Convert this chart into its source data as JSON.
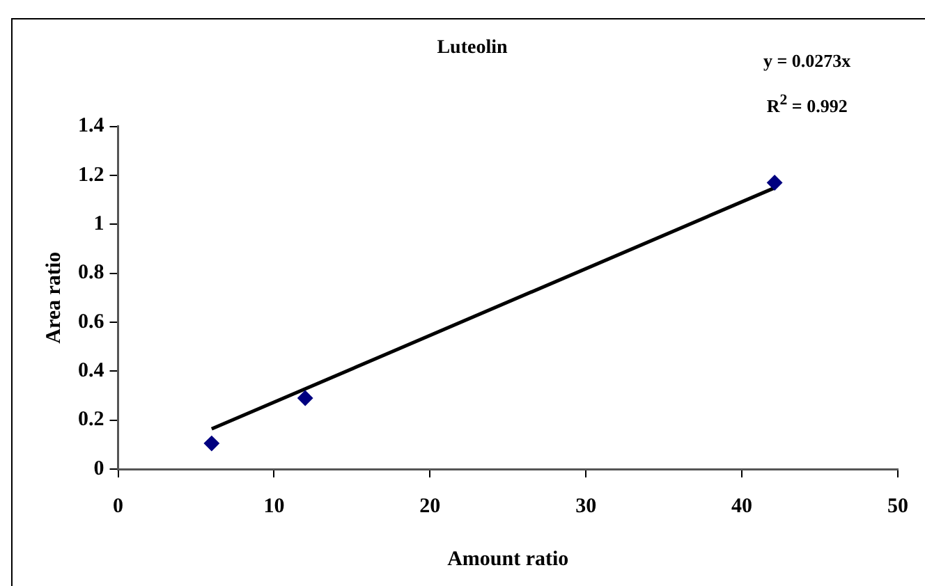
{
  "chart_data": {
    "type": "scatter",
    "title": "Luteolin",
    "xlabel": "Amount ratio",
    "ylabel": "Area ratio",
    "xlim": [
      0,
      50
    ],
    "xticks": [
      0,
      10,
      20,
      30,
      40,
      50
    ],
    "ylim": [
      0,
      1.4
    ],
    "yticks": [
      0,
      0.2,
      0.4,
      0.6,
      0.8,
      1,
      1.2,
      1.4
    ],
    "marker": "diamond",
    "legend": false,
    "grid": false,
    "series": [
      {
        "color": "#000080",
        "x": [
          6,
          12,
          42.1
        ],
        "values": [
          0.105,
          0.29,
          1.17
        ]
      },
      {
        "type": "line",
        "marker": "none",
        "color": "#000000",
        "x": [
          6,
          42.1
        ],
        "values": [
          0.164,
          1.149
        ]
      }
    ],
    "annotations": [
      "y = 0.0273x",
      "R$^{2}$ = 0.992"
    ]
  }
}
